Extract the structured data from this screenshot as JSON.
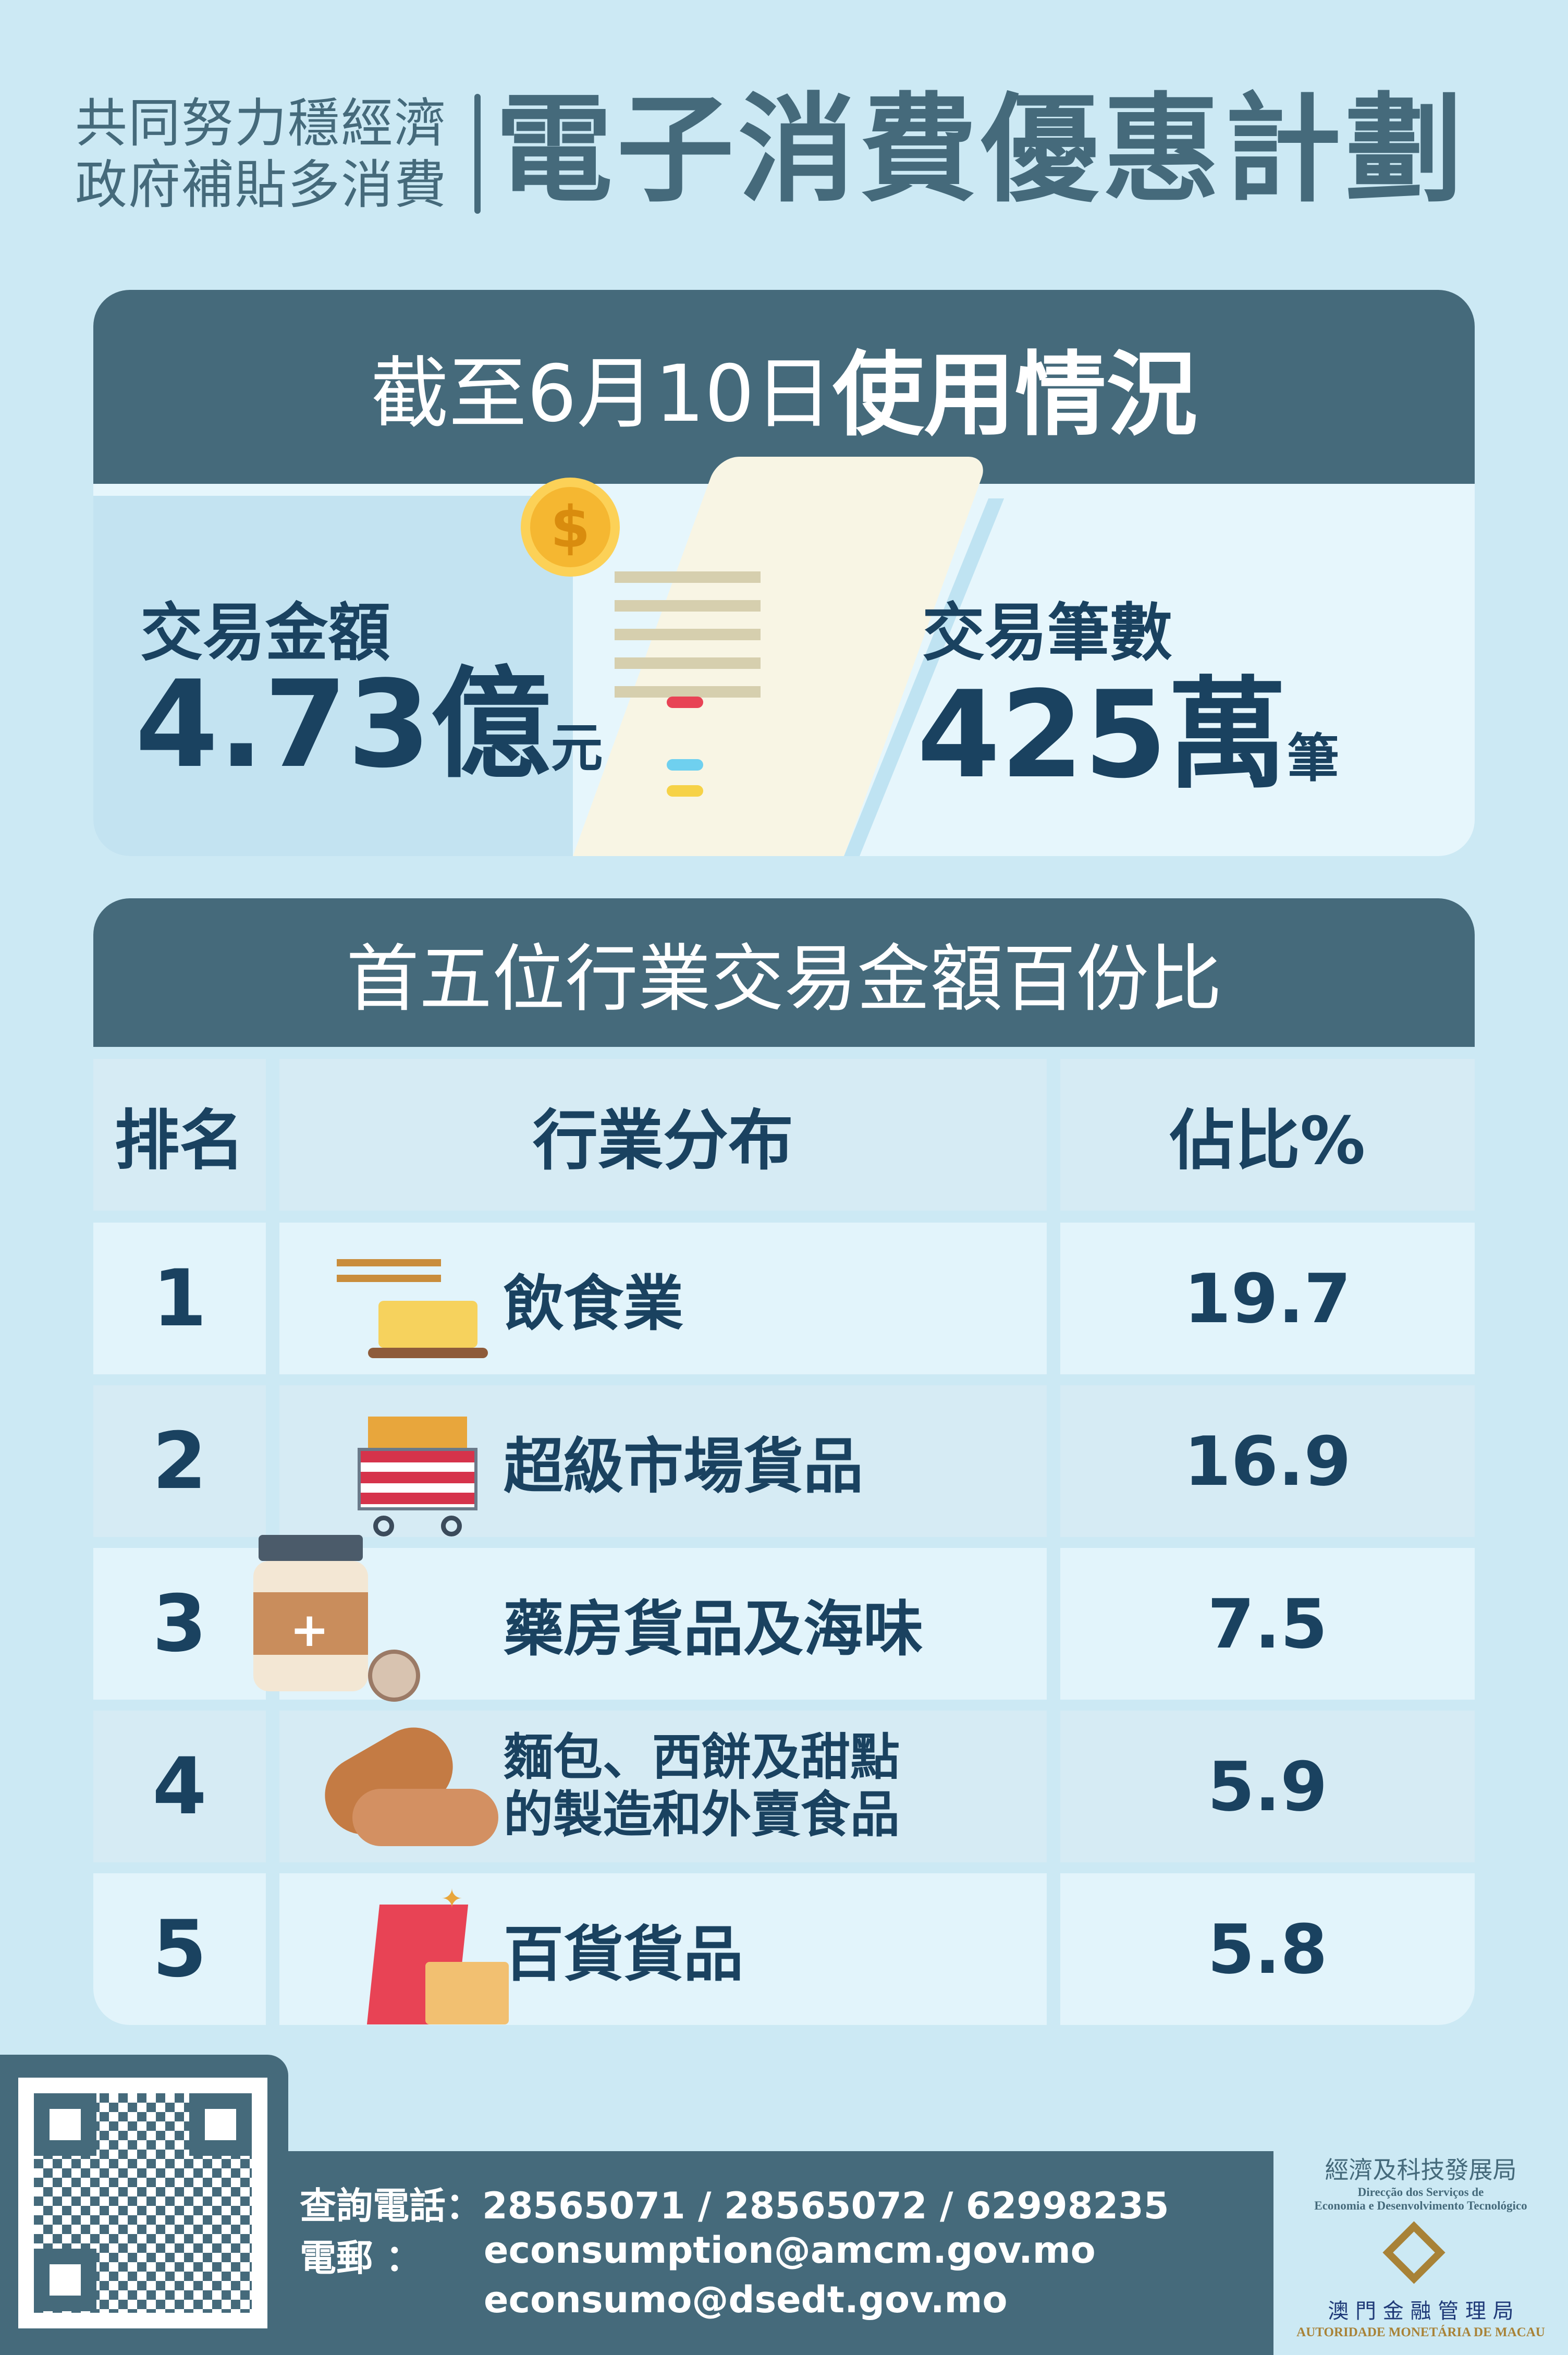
{
  "header": {
    "subtitle_line1": "共同努力穩經濟",
    "subtitle_line2": "政府補貼多消費",
    "title": "電子消費優惠計劃"
  },
  "usage": {
    "title_prefix": "截至6月10日",
    "title_bold": "使用情況",
    "amount_label": "交易金額",
    "amount_value": "4.73億",
    "amount_unit": "元",
    "count_label": "交易筆數",
    "count_value": "425萬",
    "count_unit": "筆"
  },
  "ranking": {
    "title": "首五位行業交易金額百份比",
    "headers": [
      "排名",
      "行業分布",
      "佔比%"
    ],
    "rows": [
      {
        "rank": "1",
        "industry": "飲食業",
        "percent": "19.7",
        "icon": "food-icon"
      },
      {
        "rank": "2",
        "industry": "超級市場貨品",
        "percent": "16.9",
        "icon": "shopping-cart-icon"
      },
      {
        "rank": "3",
        "industry": "藥房貨品及海味",
        "percent": "7.5",
        "icon": "medicine-icon"
      },
      {
        "rank": "4",
        "industry": "麵包、西餅及甜點\n的製造和外賣食品",
        "industry_line1": "麵包、西餅及甜點",
        "industry_line2": "的製造和外賣食品",
        "percent": "5.9",
        "icon": "bread-icon"
      },
      {
        "rank": "5",
        "industry": "百貨貨品",
        "percent": "5.8",
        "icon": "shopping-bag-icon"
      }
    ]
  },
  "footer": {
    "phone_label": "查詢電話：",
    "phones": "28565071 / 28565072 / 62998235",
    "email_label": "電郵 ：",
    "email1": "econsumption@amcm.gov.mo",
    "email2": "econsumo@dsedt.gov.mo"
  },
  "logos": {
    "dsedt_zh": "經濟及科技發展局",
    "dsedt_pt1": "Direcção dos Serviços de",
    "dsedt_pt2": "Economia e Desenvolvimento Tecnológico",
    "amcm_zh": "澳 門 金 融 管 理 局",
    "amcm_pt": "AUTORIDADE MONETÁRIA DE MACAU"
  },
  "colors": {
    "background": "#cce9f4",
    "dark": "#456a7b",
    "text": "#1a4260",
    "gold": "#a88237"
  }
}
